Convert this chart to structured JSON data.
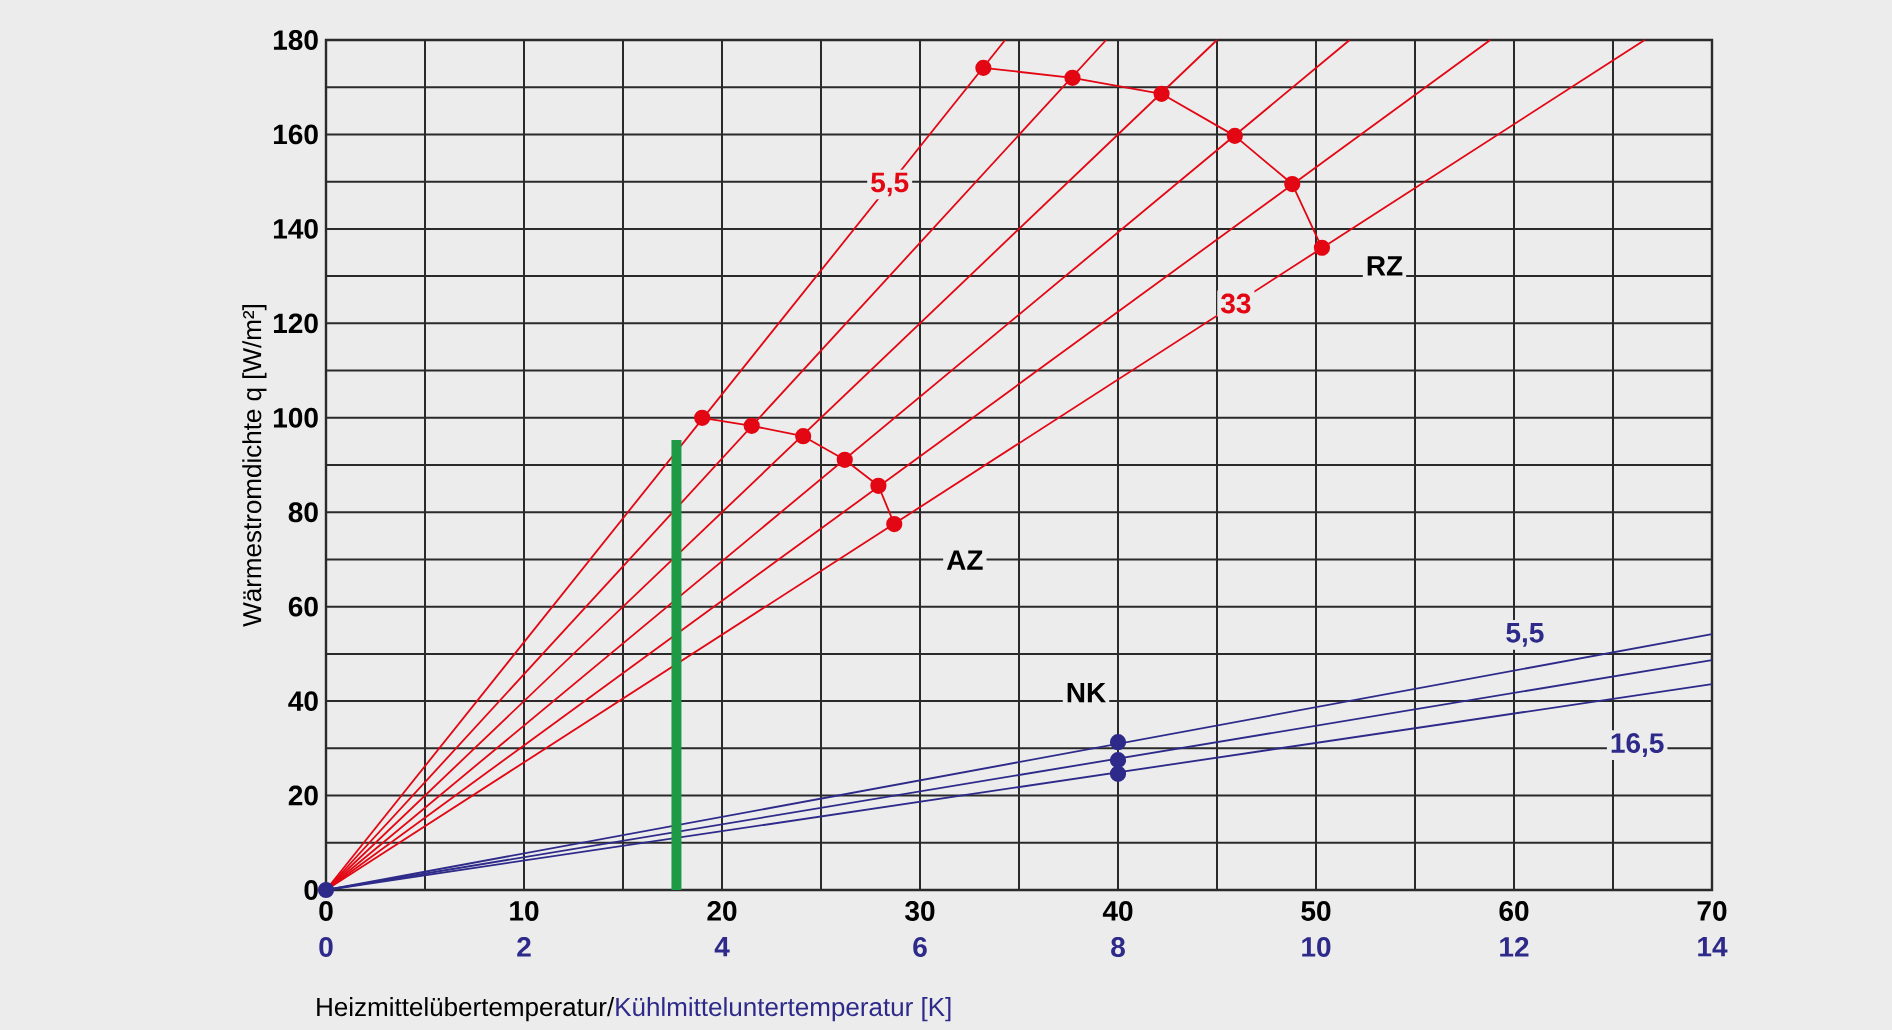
{
  "chart_data": {
    "type": "line",
    "xlabel": "Heizmittelübertemperatur/",
    "x2label": "Kühlmitteluntertemperatur [K]",
    "ylabel": "Wärmestromdichte q [W/m²]",
    "xlim": [
      0,
      70
    ],
    "ylim": [
      0,
      180
    ],
    "x2lim": [
      0,
      14
    ],
    "xticks": [
      0,
      {
        "value": 5,
        "label": null
      },
      10,
      {
        "value": 15,
        "label": null
      },
      20,
      {
        "value": 25,
        "label": null
      },
      30,
      {
        "value": 35,
        "label": null
      },
      40,
      {
        "value": 45,
        "label": null
      },
      50,
      {
        "value": 55,
        "label": null
      },
      60,
      {
        "value": 65,
        "label": null
      },
      70
    ],
    "yticks": [
      0,
      {
        "value": 10,
        "label": null
      },
      20,
      {
        "value": 30,
        "label": null
      },
      40,
      {
        "value": 50,
        "label": null
      },
      60,
      {
        "value": 70,
        "label": null
      },
      80,
      {
        "value": 90,
        "label": null
      },
      100,
      {
        "value": 110,
        "label": null
      },
      120,
      {
        "value": 130,
        "label": null
      },
      140,
      {
        "value": 150,
        "label": null
      },
      160,
      {
        "value": 170,
        "label": null
      },
      180
    ],
    "x2ticks": [
      0,
      2,
      4,
      6,
      8,
      10,
      12,
      14
    ],
    "grid": true,
    "series": [
      {
        "name": "5,5",
        "color": "#e30613",
        "x": [
          0,
          34.3
        ],
        "values": [
          0,
          180
        ]
      },
      {
        "color": "#e30613",
        "x": [
          0,
          39.4
        ],
        "values": [
          0,
          180
        ]
      },
      {
        "color": "#e30613",
        "x": [
          0,
          45
        ],
        "values": [
          0,
          180
        ]
      },
      {
        "color": "#e30613",
        "x": [
          0,
          51.7
        ],
        "values": [
          0,
          180
        ]
      },
      {
        "color": "#e30613",
        "x": [
          0,
          58.8
        ],
        "values": [
          0,
          180
        ]
      },
      {
        "name": "33",
        "color": "#e30613",
        "x": [
          0,
          66.6
        ],
        "values": [
          0,
          180
        ]
      },
      {
        "name": "AZ",
        "marker": "circle",
        "color": "#e30613",
        "x": [
          19,
          21.5,
          24.1,
          26.2,
          27.9,
          28.7
        ],
        "values": [
          100,
          98.3,
          96.1,
          91.1,
          85.6,
          77.5
        ]
      },
      {
        "name": "RZ",
        "marker": "circle",
        "color": "#e30613",
        "x": [
          33.2,
          37.7,
          42.2,
          45.9,
          48.8,
          50.3
        ],
        "values": [
          174.1,
          172,
          168.6,
          159.7,
          149.5,
          136
        ]
      },
      {
        "name": "5,5",
        "color": "#2e2a8a",
        "x": [
          0,
          70
        ],
        "values": [
          0,
          54.2
        ]
      },
      {
        "color": "#2e2a8a",
        "x": [
          0,
          70
        ],
        "values": [
          0,
          48.7
        ]
      },
      {
        "name": "16,5",
        "color": "#2e2a8a",
        "x": [
          0,
          70
        ],
        "values": [
          0,
          43.6
        ]
      },
      {
        "name": "NK",
        "type": "scatter",
        "marker": "circle",
        "color": "#2e2a8a",
        "x": [
          40,
          40,
          40
        ],
        "values": [
          31.3,
          27.5,
          24.6
        ]
      },
      {
        "type": "scatter",
        "marker": "circle",
        "color": "#2e2a8a",
        "x": [
          0
        ],
        "values": [
          0
        ]
      },
      {
        "color": "#1e9a46",
        "x": [
          17.7,
          17.7
        ],
        "values": [
          0,
          95.3
        ]
      }
    ]
  }
}
